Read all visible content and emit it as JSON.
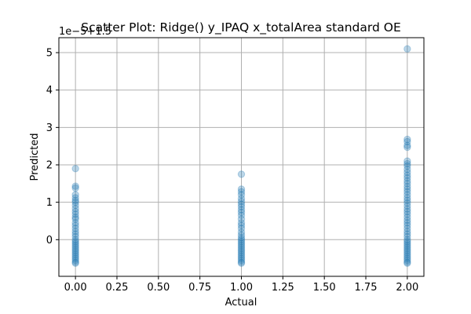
{
  "chart_data": {
    "type": "scatter",
    "title": "Scatter Plot: Ridge() y_IPAQ x_totalArea standard OE",
    "xlabel": "Actual",
    "ylabel": "Predicted",
    "y_offset_text": "1e−5+1.5",
    "xlim": [
      -0.1,
      2.1
    ],
    "ylim": [
      -0.98,
      5.4
    ],
    "x_ticks": [
      0.0,
      0.25,
      0.5,
      0.75,
      1.0,
      1.25,
      1.5,
      1.75,
      2.0
    ],
    "x_tick_labels": [
      "0.00",
      "0.25",
      "0.50",
      "0.75",
      "1.00",
      "1.25",
      "1.50",
      "1.75",
      "2.00"
    ],
    "y_ticks": [
      0,
      1,
      2,
      3,
      4,
      5
    ],
    "y_tick_labels": [
      "0",
      "1",
      "2",
      "3",
      "4",
      "5"
    ],
    "grid": true,
    "marker_color": "#1f77b4",
    "marker_alpha": 0.3,
    "series": [
      {
        "points": [
          [
            0,
            1.9
          ],
          [
            0,
            1.43
          ],
          [
            0,
            1.38
          ],
          [
            0,
            1.2
          ],
          [
            0,
            1.12
          ],
          [
            0,
            1.05
          ],
          [
            0,
            1.0
          ],
          [
            0,
            0.92
          ],
          [
            0,
            0.83
          ],
          [
            0,
            0.75
          ],
          [
            0,
            0.68
          ],
          [
            0,
            0.6
          ],
          [
            0,
            0.55
          ],
          [
            0,
            0.45
          ],
          [
            0,
            0.38
          ],
          [
            0,
            0.3
          ],
          [
            0,
            0.22
          ],
          [
            0,
            0.15
          ],
          [
            0,
            0.08
          ],
          [
            0,
            0.0
          ],
          [
            0,
            -0.05
          ],
          [
            0,
            -0.1
          ],
          [
            0,
            -0.15
          ],
          [
            0,
            -0.2
          ],
          [
            0,
            -0.25
          ],
          [
            0,
            -0.3
          ],
          [
            0,
            -0.35
          ],
          [
            0,
            -0.4
          ],
          [
            0,
            -0.45
          ],
          [
            0,
            -0.5
          ],
          [
            0,
            -0.55
          ],
          [
            0,
            -0.6
          ],
          [
            0,
            -0.63
          ],
          [
            1,
            1.75
          ],
          [
            1,
            1.35
          ],
          [
            1,
            1.28
          ],
          [
            1,
            1.2
          ],
          [
            1,
            1.1
          ],
          [
            1,
            1.02
          ],
          [
            1,
            0.95
          ],
          [
            1,
            0.88
          ],
          [
            1,
            0.8
          ],
          [
            1,
            0.73
          ],
          [
            1,
            0.65
          ],
          [
            1,
            0.55
          ],
          [
            1,
            0.45
          ],
          [
            1,
            0.38
          ],
          [
            1,
            0.3
          ],
          [
            1,
            0.2
          ],
          [
            1,
            0.12
          ],
          [
            1,
            0.05
          ],
          [
            1,
            0.0
          ],
          [
            1,
            -0.05
          ],
          [
            1,
            -0.1
          ],
          [
            1,
            -0.15
          ],
          [
            1,
            -0.2
          ],
          [
            1,
            -0.25
          ],
          [
            1,
            -0.3
          ],
          [
            1,
            -0.35
          ],
          [
            1,
            -0.4
          ],
          [
            1,
            -0.45
          ],
          [
            1,
            -0.5
          ],
          [
            1,
            -0.55
          ],
          [
            1,
            -0.6
          ],
          [
            1,
            -0.63
          ],
          [
            2,
            5.1
          ],
          [
            2,
            2.68
          ],
          [
            2,
            2.62
          ],
          [
            2,
            2.52
          ],
          [
            2,
            2.47
          ],
          [
            2,
            2.1
          ],
          [
            2,
            2.03
          ],
          [
            2,
            1.97
          ],
          [
            2,
            1.88
          ],
          [
            2,
            1.8
          ],
          [
            2,
            1.72
          ],
          [
            2,
            1.65
          ],
          [
            2,
            1.57
          ],
          [
            2,
            1.5
          ],
          [
            2,
            1.42
          ],
          [
            2,
            1.35
          ],
          [
            2,
            1.28
          ],
          [
            2,
            1.2
          ],
          [
            2,
            1.12
          ],
          [
            2,
            1.05
          ],
          [
            2,
            0.98
          ],
          [
            2,
            0.9
          ],
          [
            2,
            0.82
          ],
          [
            2,
            0.75
          ],
          [
            2,
            0.68
          ],
          [
            2,
            0.6
          ],
          [
            2,
            0.52
          ],
          [
            2,
            0.45
          ],
          [
            2,
            0.38
          ],
          [
            2,
            0.3
          ],
          [
            2,
            0.22
          ],
          [
            2,
            0.15
          ],
          [
            2,
            0.08
          ],
          [
            2,
            0.0
          ],
          [
            2,
            -0.05
          ],
          [
            2,
            -0.1
          ],
          [
            2,
            -0.15
          ],
          [
            2,
            -0.2
          ],
          [
            2,
            -0.25
          ],
          [
            2,
            -0.3
          ],
          [
            2,
            -0.35
          ],
          [
            2,
            -0.4
          ],
          [
            2,
            -0.45
          ],
          [
            2,
            -0.5
          ],
          [
            2,
            -0.55
          ],
          [
            2,
            -0.6
          ],
          [
            2,
            -0.63
          ]
        ]
      }
    ]
  }
}
